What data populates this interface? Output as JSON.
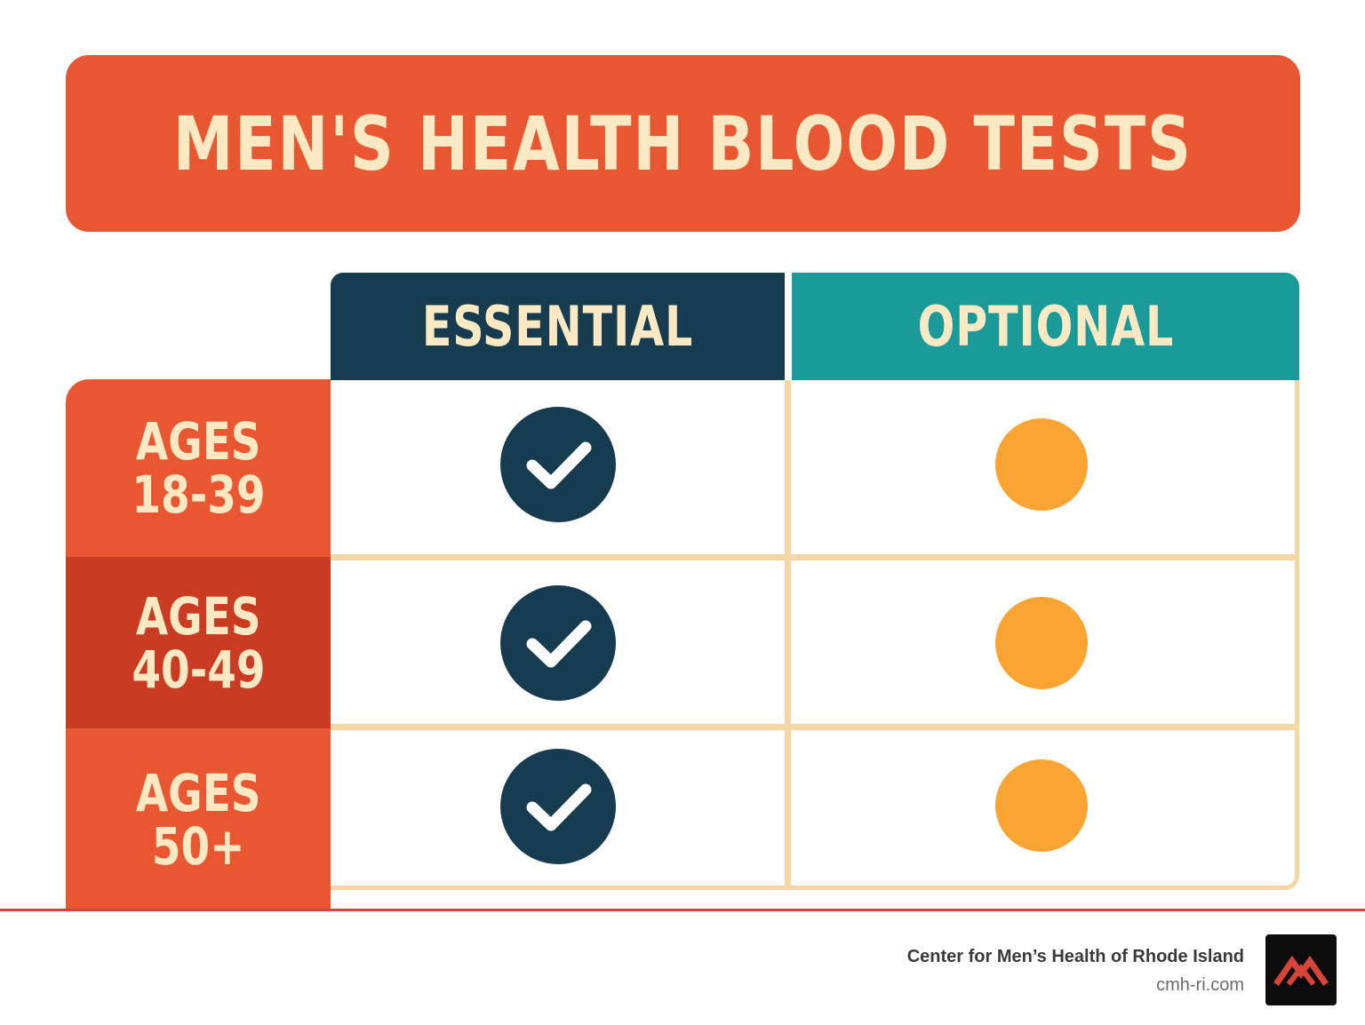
{
  "title": "MEN'S HEALTH BLOOD TESTS",
  "columns": {
    "essential": "ESSENTIAL",
    "optional": "OPTIONAL"
  },
  "rows": [
    {
      "line1": "AGES",
      "line2": "18-39",
      "essential": "check",
      "optional": "dot",
      "bg": "#e95732"
    },
    {
      "line1": "AGES",
      "line2": "40-49",
      "essential": "check",
      "optional": "dot",
      "bg": "#c93b22"
    },
    {
      "line1": "AGES",
      "line2": "50+",
      "essential": "check",
      "optional": "dot",
      "bg": "#e95732"
    }
  ],
  "icons": {
    "essential": "checkmark-icon",
    "optional": "circle-dot-icon"
  },
  "colors": {
    "banner": "#e95732",
    "essential_header": "#173b4f",
    "optional_header": "#1a9b9a",
    "optional_dot": "#f9a433",
    "grid_lines": "#f4d7a5"
  },
  "footer": {
    "name": "Center for Men’s Health of Rhode Island",
    "url": "cmh-ri.com"
  }
}
